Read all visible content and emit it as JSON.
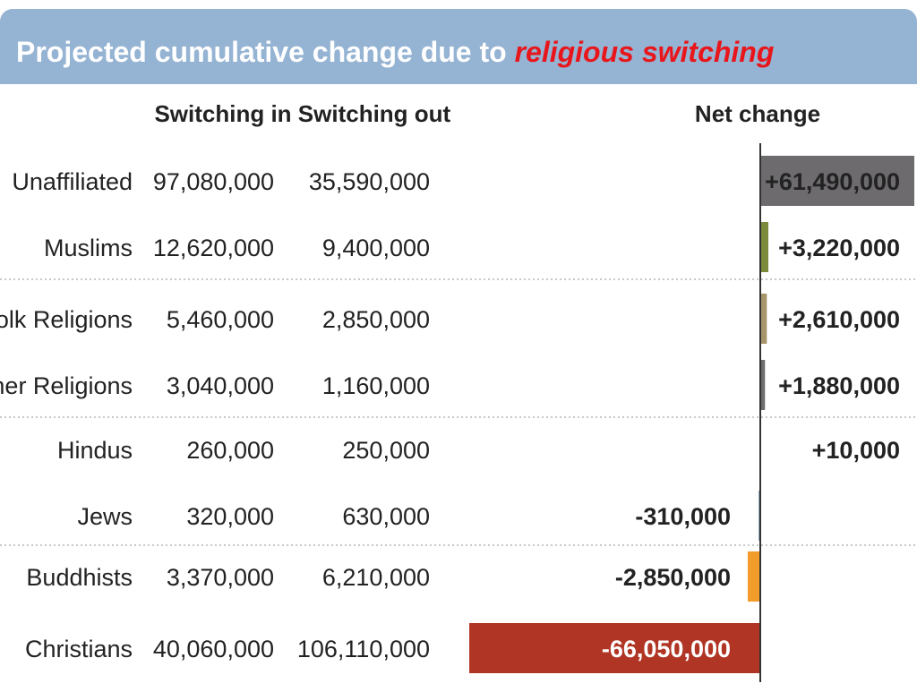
{
  "title": {
    "prefix": "Projected cumulative change due to ",
    "highlight": "religious switching"
  },
  "colors": {
    "header_bg": "#95b3d3",
    "title_text": "#ffffff",
    "title_highlight": "#e8161b"
  },
  "chart_data": {
    "type": "table",
    "columns": [
      "Switching in",
      "Switching out",
      "Net change"
    ],
    "rows": [
      {
        "name": "Unaffiliated",
        "switching_in": "97,080,000",
        "switching_out": "35,590,000",
        "net_label": "+61,490,000",
        "net": 61490000,
        "color": "#6d6b6e"
      },
      {
        "name": "Muslims",
        "switching_in": "12,620,000",
        "switching_out": "9,400,000",
        "net_label": "+3,220,000",
        "net": 3220000,
        "color": "#7b8a3b"
      },
      {
        "name": "Folk Religions",
        "switching_in": "5,460,000",
        "switching_out": "2,850,000",
        "net_label": "+2,610,000",
        "net": 2610000,
        "color": "#a8946a"
      },
      {
        "name": "Other Religions",
        "switching_in": "3,040,000",
        "switching_out": "1,160,000",
        "net_label": "+1,880,000",
        "net": 1880000,
        "color": "#6e6e6e"
      },
      {
        "name": "Hindus",
        "switching_in": "260,000",
        "switching_out": "250,000",
        "net_label": "+10,000",
        "net": 10000,
        "color": "#c06a3b"
      },
      {
        "name": "Jews",
        "switching_in": "320,000",
        "switching_out": "630,000",
        "net_label": "-310,000",
        "net": -310000,
        "color": "#2e5f7a"
      },
      {
        "name": "Buddhists",
        "switching_in": "3,370,000",
        "switching_out": "6,210,000",
        "net_label": "-2,850,000",
        "net": -2850000,
        "color": "#f29c2b"
      },
      {
        "name": "Christians",
        "switching_in": "40,060,000",
        "switching_out": "106,110,000",
        "net_label": "-66,050,000",
        "net": -66050000,
        "color": "#b03524"
      }
    ]
  }
}
